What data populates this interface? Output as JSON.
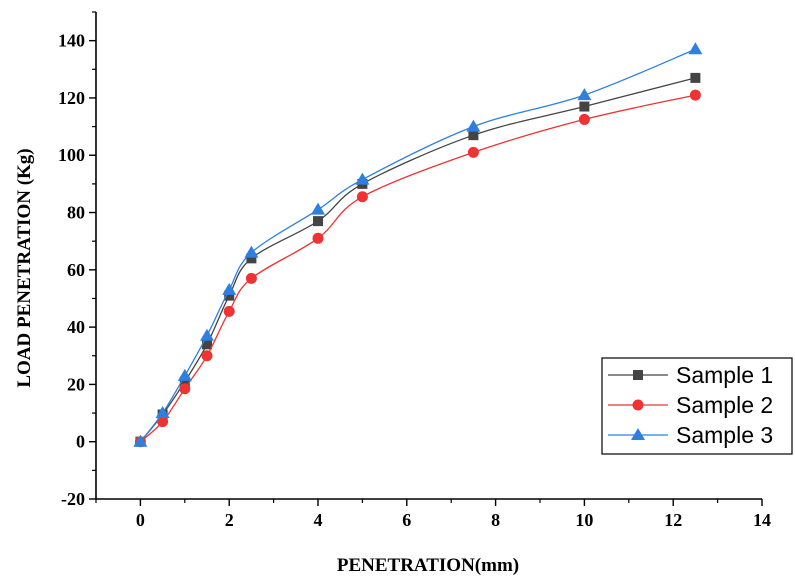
{
  "chart_data": {
    "type": "line",
    "xlabel": "PENETRATION(mm)",
    "ylabel": "LOAD PENETRATION (Kg)",
    "xlim": [
      -1,
      14
    ],
    "ylim": [
      -20,
      150
    ],
    "xticks": [
      0,
      2,
      4,
      6,
      8,
      10,
      12,
      14
    ],
    "yticks": [
      -20,
      0,
      20,
      40,
      60,
      80,
      100,
      120,
      140
    ],
    "grid": false,
    "legend_position": "bottom-right",
    "x": [
      0,
      0.5,
      1,
      1.5,
      2,
      2.5,
      4,
      5,
      7.5,
      10,
      12.5
    ],
    "series": [
      {
        "name": "Sample 1",
        "color": "#444444",
        "marker": "square",
        "values": [
          0,
          9.5,
          21,
          34,
          51,
          64,
          77,
          90,
          107,
          117,
          127
        ]
      },
      {
        "name": "Sample 2",
        "color": "#ee3333",
        "marker": "circle",
        "values": [
          0,
          7,
          18.5,
          30,
          45.5,
          57,
          71,
          85.5,
          101,
          112.5,
          121
        ]
      },
      {
        "name": "Sample 3",
        "color": "#2f7fe0",
        "marker": "triangle",
        "values": [
          0,
          10,
          23,
          37,
          53,
          66,
          81,
          91.5,
          110,
          121,
          137
        ]
      }
    ]
  }
}
